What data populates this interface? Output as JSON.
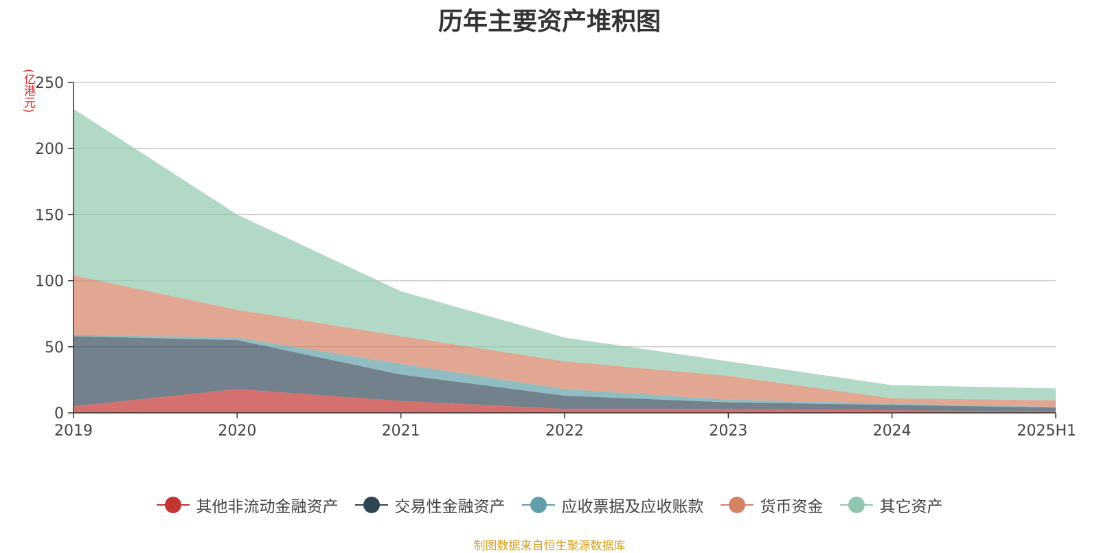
{
  "chart_data": {
    "type": "area",
    "stacked": true,
    "title": "历年主要资产堆积图",
    "ylabel": "(亿港元)",
    "ylim": [
      0,
      250
    ],
    "yticks": [
      0,
      50,
      100,
      150,
      200,
      250
    ],
    "categories": [
      "2019",
      "2020",
      "2021",
      "2022",
      "2023",
      "2024",
      "2025H1"
    ],
    "series": [
      {
        "name": "其他非流动金融资产",
        "color": "#c23531",
        "values": [
          5,
          18,
          9,
          3,
          3,
          2,
          1
        ]
      },
      {
        "name": "交易性金融资产",
        "color": "#2f4554",
        "values": [
          53,
          37,
          20,
          10,
          5,
          4,
          3
        ]
      },
      {
        "name": "应收票据及应收账款",
        "color": "#61a0a8",
        "values": [
          1,
          2,
          8,
          5,
          2,
          1,
          0.5
        ]
      },
      {
        "name": "货币资金",
        "color": "#d48265",
        "values": [
          45,
          21,
          21,
          21,
          18,
          4,
          5
        ]
      },
      {
        "name": "其它资产",
        "color": "#91c7ae",
        "values": [
          126,
          72,
          34,
          18,
          11,
          10,
          9
        ]
      }
    ],
    "legend_position": "bottom",
    "source": "制图数据来自恒生聚源数据库"
  }
}
